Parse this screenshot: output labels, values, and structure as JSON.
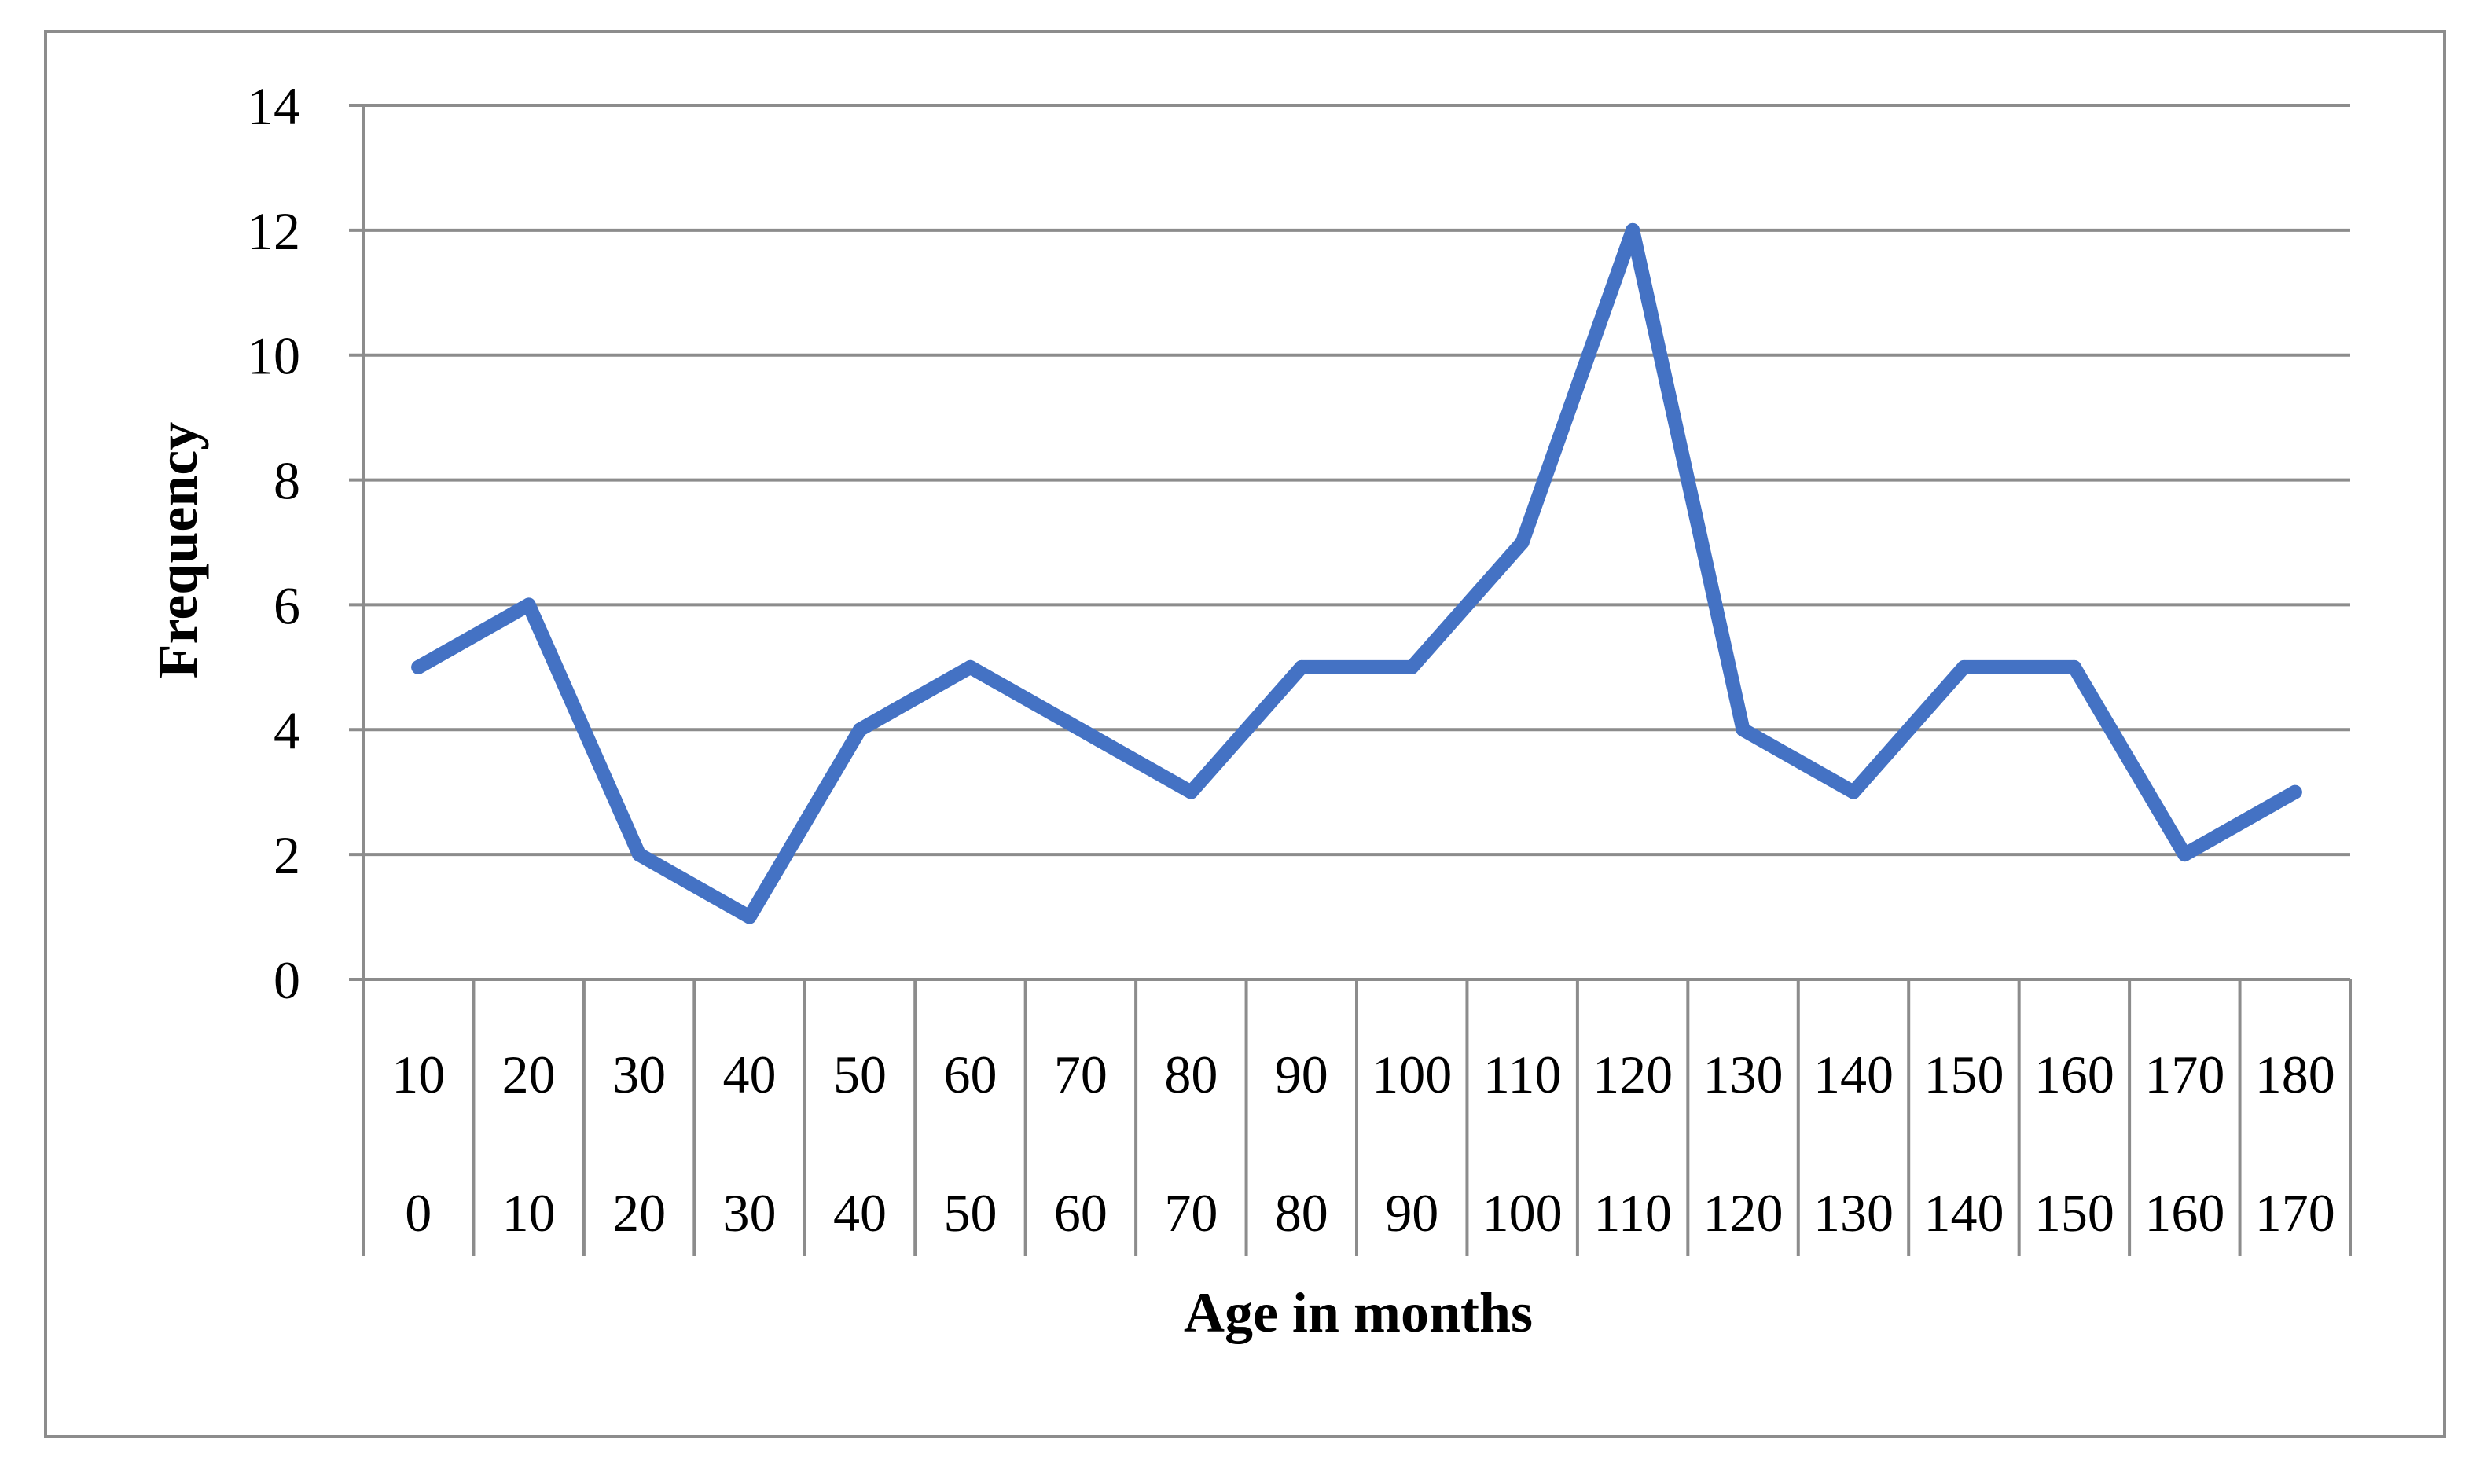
{
  "chart_data": {
    "type": "line",
    "xlabel": "Age in months",
    "ylabel": "Frequency",
    "ylim": [
      0,
      14
    ],
    "yticks": [
      "0",
      "2",
      "4",
      "6",
      "8",
      "10",
      "12",
      "14"
    ],
    "categories": [
      {
        "upper": "10",
        "lower": "0"
      },
      {
        "upper": "20",
        "lower": "10"
      },
      {
        "upper": "30",
        "lower": "20"
      },
      {
        "upper": "40",
        "lower": "30"
      },
      {
        "upper": "50",
        "lower": "40"
      },
      {
        "upper": "60",
        "lower": "50"
      },
      {
        "upper": "70",
        "lower": "60"
      },
      {
        "upper": "80",
        "lower": "70"
      },
      {
        "upper": "90",
        "lower": "80"
      },
      {
        "upper": "100",
        "lower": "90"
      },
      {
        "upper": "110",
        "lower": "100"
      },
      {
        "upper": "120",
        "lower": "110"
      },
      {
        "upper": "130",
        "lower": "120"
      },
      {
        "upper": "140",
        "lower": "130"
      },
      {
        "upper": "150",
        "lower": "140"
      },
      {
        "upper": "160",
        "lower": "150"
      },
      {
        "upper": "170",
        "lower": "160"
      },
      {
        "upper": "180",
        "lower": "170"
      }
    ],
    "series": [
      {
        "values": [
          5,
          6,
          2,
          1,
          4,
          5,
          4,
          3,
          5,
          5,
          7,
          12,
          4,
          3,
          5,
          5,
          2,
          3
        ]
      }
    ],
    "grid": true,
    "legend": "none",
    "colors": {
      "line": "#4472C4",
      "grid": "#8c8c8c",
      "axis": "#8c8c8c"
    }
  }
}
